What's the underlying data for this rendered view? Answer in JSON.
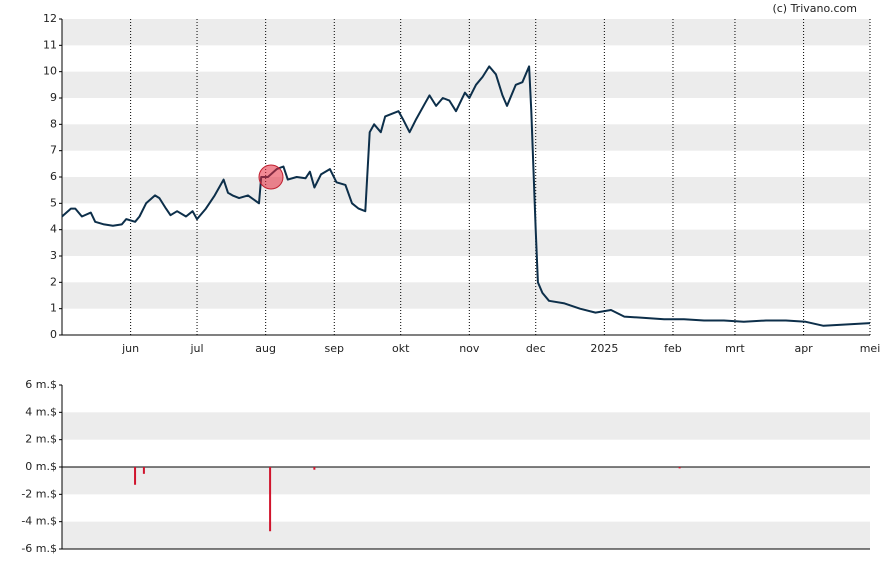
{
  "copyright": "(c) Trivano.com",
  "chart_data": [
    {
      "type": "line",
      "color": "#0d2f4a",
      "x": [
        0,
        4,
        6,
        9,
        13,
        15,
        19,
        23,
        27,
        29,
        33,
        35,
        38,
        42,
        44,
        47,
        49,
        52,
        56,
        59,
        61,
        65,
        69,
        73,
        75,
        77,
        80,
        84,
        89,
        90,
        93,
        97,
        100,
        102,
        106,
        110,
        112,
        114,
        117,
        121,
        124,
        128,
        131,
        134,
        137,
        139,
        141,
        144,
        146,
        149,
        152,
        154,
        157,
        160,
        164,
        166,
        169,
        172,
        175,
        178,
        182,
        184,
        187,
        190,
        193,
        196,
        199,
        201,
        205,
        208,
        211,
        212,
        214,
        215,
        217,
        220,
        227,
        234,
        241,
        248,
        254,
        263,
        272,
        281,
        290,
        299,
        308,
        318,
        327,
        336,
        344,
        354,
        365
      ],
      "values": [
        4.5,
        4.8,
        4.8,
        4.5,
        4.65,
        4.3,
        4.2,
        4.15,
        4.2,
        4.4,
        4.3,
        4.5,
        5.0,
        5.3,
        5.2,
        4.8,
        4.55,
        4.7,
        4.5,
        4.7,
        4.4,
        4.8,
        5.3,
        5.9,
        5.4,
        5.3,
        5.2,
        5.3,
        5.0,
        6.0,
        6.0,
        6.3,
        6.4,
        5.9,
        6.0,
        5.95,
        6.2,
        5.6,
        6.1,
        6.3,
        5.8,
        5.7,
        5.0,
        4.8,
        4.7,
        7.7,
        8.0,
        7.7,
        8.3,
        8.4,
        8.5,
        8.2,
        7.7,
        8.2,
        8.8,
        9.1,
        8.7,
        9.0,
        8.9,
        8.5,
        9.2,
        9.0,
        9.5,
        9.8,
        10.2,
        9.9,
        9.1,
        8.7,
        9.5,
        9.6,
        10.2,
        8.5,
        4.0,
        2.0,
        1.6,
        1.3,
        1.2,
        1.0,
        0.85,
        0.95,
        0.7,
        0.65,
        0.6,
        0.6,
        0.55,
        0.55,
        0.5,
        0.55,
        0.55,
        0.5,
        0.35,
        0.4,
        0.45
      ],
      "xlim": [
        0,
        365
      ],
      "xticks": [
        {
          "value": 31,
          "label": "jun"
        },
        {
          "value": 61,
          "label": "jul"
        },
        {
          "value": 92,
          "label": "aug"
        },
        {
          "value": 123,
          "label": "sep"
        },
        {
          "value": 153,
          "label": "okt"
        },
        {
          "value": 184,
          "label": "nov"
        },
        {
          "value": 214,
          "label": "dec"
        },
        {
          "value": 245,
          "label": "2025"
        },
        {
          "value": 276,
          "label": "feb"
        },
        {
          "value": 304,
          "label": "mrt"
        },
        {
          "value": 335,
          "label": "apr"
        },
        {
          "value": 365,
          "label": "mei"
        }
      ],
      "ylim": [
        0,
        12
      ],
      "yticks": [
        0,
        1,
        2,
        3,
        4,
        5,
        6,
        7,
        8,
        9,
        10,
        11,
        12
      ],
      "grid": true
    },
    {
      "type": "bar",
      "color": "#d0142c",
      "x": [
        33,
        37,
        94,
        114,
        279
      ],
      "values": [
        -1.3,
        -0.5,
        -4.7,
        -0.2,
        -0.1
      ],
      "xlim": [
        0,
        365
      ],
      "ylim": [
        -6,
        6
      ],
      "yticks": [
        {
          "value": 6,
          "label": "6 m.$"
        },
        {
          "value": 4,
          "label": "4 m.$"
        },
        {
          "value": 2,
          "label": "2 m.$"
        },
        {
          "value": 0,
          "label": "0 m.$"
        },
        {
          "value": -2,
          "label": "-2 m.$"
        },
        {
          "value": -4,
          "label": "-4 m.$"
        },
        {
          "value": -6,
          "label": "-6 m.$"
        }
      ],
      "grid": true
    }
  ]
}
